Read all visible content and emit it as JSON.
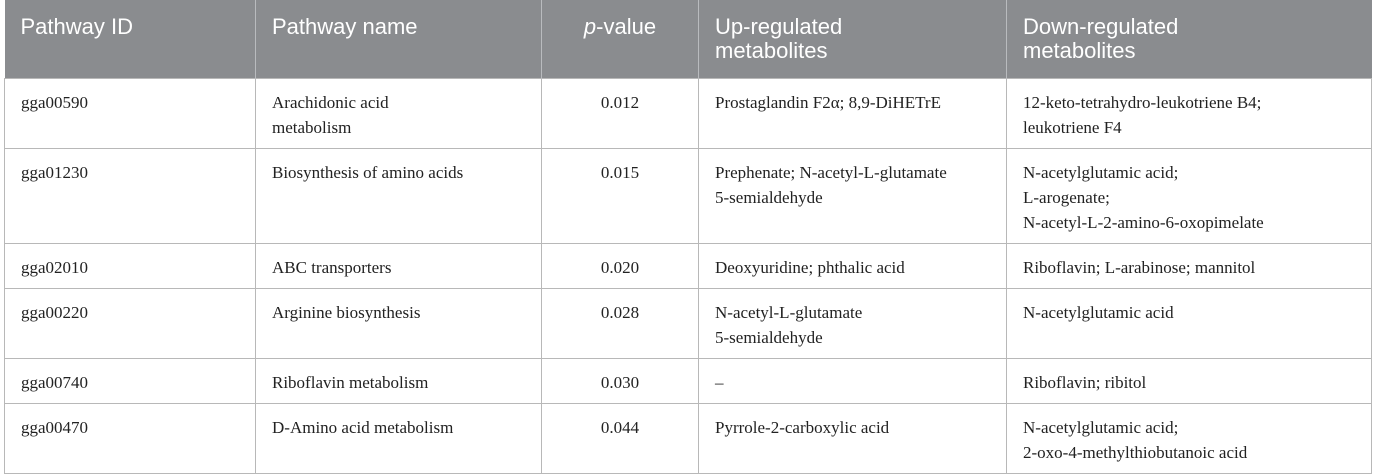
{
  "table": {
    "headers": {
      "pathway_id": "Pathway ID",
      "pathway_name": "Pathway name",
      "p_prefix": "p",
      "p_suffix": "-value",
      "up_line1": "Up-regulated",
      "up_line2": "metabolites",
      "down_line1": "Down-regulated",
      "down_line2": "metabolites"
    },
    "rows": [
      {
        "id": "gga00590",
        "name": [
          "Arachidonic acid",
          "metabolism"
        ],
        "p": "0.012",
        "up": [
          "Prostaglandin F2α; 8,9-DiHETrE"
        ],
        "down": [
          "12-keto-tetrahydro-leukotriene B4;",
          "leukotriene F4"
        ]
      },
      {
        "id": "gga01230",
        "name": [
          "Biosynthesis of amino acids"
        ],
        "p": "0.015",
        "up": [
          "Prephenate; N-acetyl-L-glutamate",
          "5-semialdehyde"
        ],
        "down": [
          "N-acetylglutamic acid;",
          "L-arogenate;",
          "N-acetyl-L-2-amino-6-oxopimelate"
        ]
      },
      {
        "id": "gga02010",
        "name": [
          "ABC transporters"
        ],
        "p": "0.020",
        "up": [
          "Deoxyuridine; phthalic acid"
        ],
        "down": [
          "Riboflavin; L-arabinose; mannitol"
        ]
      },
      {
        "id": "gga00220",
        "name": [
          "Arginine biosynthesis"
        ],
        "p": "0.028",
        "up": [
          "N-acetyl-L-glutamate",
          "5-semialdehyde"
        ],
        "down": [
          "N-acetylglutamic acid"
        ]
      },
      {
        "id": "gga00740",
        "name": [
          "Riboflavin metabolism"
        ],
        "p": "0.030",
        "up": [
          "–"
        ],
        "down": [
          "Riboflavin; ribitol"
        ]
      },
      {
        "id": "gga00470",
        "name": [
          "D-Amino acid metabolism"
        ],
        "p": "0.044",
        "up": [
          "Pyrrole-2-carboxylic acid"
        ],
        "down": [
          "N-acetylglutamic acid;",
          "2-oxo-4-methylthiobutanoic acid"
        ]
      }
    ]
  },
  "colors": {
    "header_bg": "#8a8c8f",
    "header_text": "#ffffff",
    "grid": "#b8b8b8",
    "body_text": "#222222"
  }
}
